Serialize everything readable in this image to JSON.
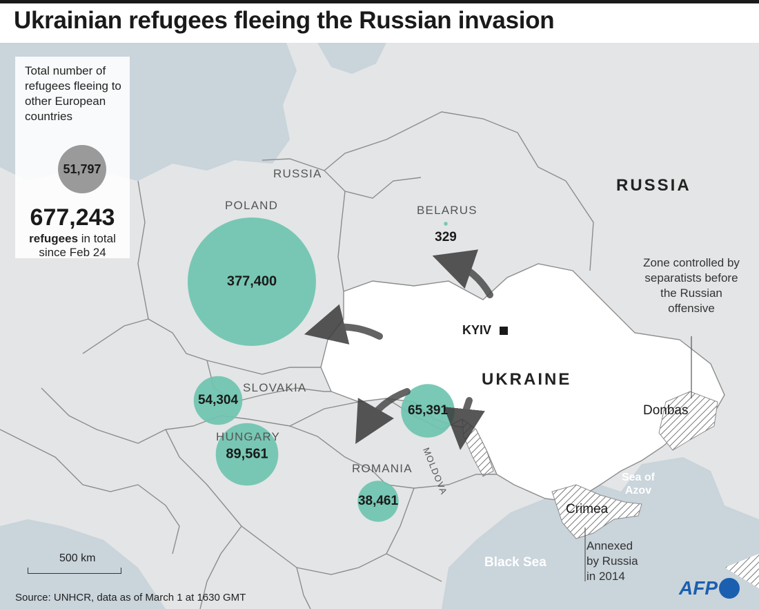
{
  "title": "Ukrainian refugees fleeing the Russian invasion",
  "legend": {
    "description": "Total number of refugees fleeing to other European countries",
    "sample_value": "51,797",
    "total": "677,243",
    "total_bold": "refugees",
    "total_rest": " in total",
    "since": "since Feb 24"
  },
  "countries": {
    "russia_kaliningrad": "RUSSIA",
    "poland": "POLAND",
    "belarus": "BELARUS",
    "russia": "RUSSIA",
    "ukraine": "UKRAINE",
    "slovakia": "SLOVAKIA",
    "hungary": "HUNGARY",
    "romania": "ROMANIA",
    "moldova": "MOLDOVA"
  },
  "city": "KYIV",
  "refugees": [
    {
      "country": "POLAND",
      "value": 377400,
      "label": "377,400"
    },
    {
      "country": "HUNGARY",
      "value": 89561,
      "label": "89,561"
    },
    {
      "country": "MOLDOVA",
      "value": 65391,
      "label": "65,391"
    },
    {
      "country": "SLOVAKIA",
      "value": 54304,
      "label": "54,304"
    },
    {
      "country": "ROMANIA",
      "value": 38461,
      "label": "38,461"
    },
    {
      "country": "BELARUS",
      "value": 329,
      "label": "329"
    }
  ],
  "annotations": {
    "zone": "Zone controlled by separatists before the Russian offensive",
    "donbas": "Donbas",
    "crimea": "Crimea",
    "annexed": "Annexed by Russia in 2014",
    "sea_azov": "Sea of Azov",
    "black_sea": "Black Sea"
  },
  "scale_label": "500 km",
  "source": "Source: UNHCR, data as of March 1 at 1630 GMT",
  "credit": "AFP",
  "colors": {
    "land": "#e4e5e6",
    "ukraine": "#ffffff",
    "sea": "#c9d4db",
    "bubble": "#6ec4b0",
    "legend_bubble": "#9a9a9a",
    "border": "#8c8c8c",
    "afp": "#1b5fb0"
  }
}
